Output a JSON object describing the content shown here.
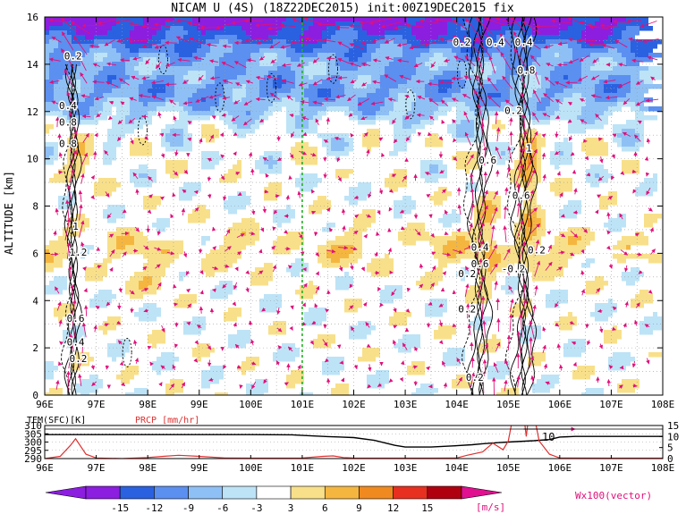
{
  "title": "NICAM U (4S) (18Z22DEC2015) init:00Z19DEC2015 fix",
  "colors": {
    "neg15": "#8c1ee0",
    "neg12": "#2a61e0",
    "neg9": "#5b8ff0",
    "neg6": "#8fc0f5",
    "neg3": "#bde3f7",
    "zero": "#ffffff",
    "pos3": "#f8e08a",
    "pos6": "#f5b640",
    "pos9": "#f08a20",
    "pos12": "#e83020",
    "pos15": "#b00010",
    "pos_hi": "#e01090",
    "vector": "#e0107a",
    "contour": "#000000",
    "temp_line": "#000000",
    "prcp_line": "#e03030",
    "marker_line": "#20b020"
  },
  "chart_data": [
    {
      "type": "heatmap",
      "name": "zonal-wind-section",
      "title": "NICAM U (4S) (18Z22DEC2015) init:00Z19DEC2015 fix",
      "ylabel": "ALTITUDE [km]",
      "xlim": [
        96,
        108
      ],
      "ylim": [
        0,
        16
      ],
      "x_ticks": [
        "96E",
        "97E",
        "98E",
        "99E",
        "100E",
        "101E",
        "102E",
        "103E",
        "104E",
        "105E",
        "106E",
        "107E",
        "108E"
      ],
      "y_ticks": [
        "0",
        "2",
        "4",
        "6",
        "8",
        "10",
        "12",
        "14",
        "16"
      ],
      "grid": true,
      "marker_x": 101,
      "contour_labels": [
        {
          "x": 96.55,
          "y": 14.2,
          "text": "0.2"
        },
        {
          "x": 96.45,
          "y": 12.1,
          "text": "0.4"
        },
        {
          "x": 96.45,
          "y": 11.4,
          "text": "0.8"
        },
        {
          "x": 96.45,
          "y": 10.5,
          "text": "0.8"
        },
        {
          "x": 96.6,
          "y": 7.0,
          "text": "1"
        },
        {
          "x": 96.65,
          "y": 5.9,
          "text": "1.2"
        },
        {
          "x": 96.6,
          "y": 3.1,
          "text": "0.6"
        },
        {
          "x": 96.6,
          "y": 2.1,
          "text": "0.4"
        },
        {
          "x": 96.65,
          "y": 1.4,
          "text": "0.2"
        },
        {
          "x": 104.1,
          "y": 18.2,
          "text": "0.2"
        },
        {
          "x": 104.75,
          "y": 18.3,
          "text": "0.4"
        },
        {
          "x": 105.3,
          "y": 18.4,
          "text": "0.4"
        },
        {
          "x": 105.35,
          "y": 13.6,
          "text": "0.8"
        },
        {
          "x": 105.1,
          "y": 11.9,
          "text": "0.2"
        },
        {
          "x": 104.6,
          "y": 9.8,
          "text": "0.6"
        },
        {
          "x": 105.4,
          "y": 10.3,
          "text": "1"
        },
        {
          "x": 105.25,
          "y": 8.3,
          "text": "0.6"
        },
        {
          "x": 104.45,
          "y": 6.1,
          "text": "0.4"
        },
        {
          "x": 104.45,
          "y": 5.4,
          "text": "0.6"
        },
        {
          "x": 104.2,
          "y": 5.0,
          "text": "0.2"
        },
        {
          "x": 105.1,
          "y": 5.2,
          "text": "-0.2"
        },
        {
          "x": 105.55,
          "y": 6.0,
          "text": "0.2"
        },
        {
          "x": 104.2,
          "y": 3.5,
          "text": "0.2"
        },
        {
          "x": 104.35,
          "y": 0.6,
          "text": "0.2"
        }
      ]
    },
    {
      "type": "line",
      "name": "surface-timeseries",
      "xlim": [
        96,
        108
      ],
      "x_ticks": [
        "96E",
        "97E",
        "98E",
        "99E",
        "100E",
        "101E",
        "102E",
        "103E",
        "104E",
        "105E",
        "106E",
        "107E",
        "108E"
      ],
      "series": [
        {
          "name": "TEM(SFC)[K]",
          "axis": "left",
          "ylim": [
            290,
            310
          ],
          "ticks": [
            "290",
            "295",
            "300",
            "305",
            "310"
          ],
          "x": [
            96,
            97,
            98,
            99,
            100,
            100.8,
            101,
            101.5,
            102,
            102.4,
            102.8,
            103,
            103.5,
            104,
            104.3,
            104.5,
            104.8,
            105,
            105.5,
            105.8,
            106,
            106.3,
            107,
            107.5,
            108
          ],
          "values": [
            304.5,
            304.5,
            304.5,
            304.5,
            304.5,
            304.4,
            304,
            303.3,
            302.7,
            301,
            298,
            297,
            297,
            297.8,
            298.4,
            299,
            299.6,
            300,
            300.8,
            301.5,
            303,
            303.4,
            303.4,
            303.4,
            303.4
          ]
        },
        {
          "name": "PRCP [mm/hr]",
          "axis": "right",
          "ylim": [
            0,
            15
          ],
          "ticks": [
            "0",
            "5",
            "10",
            "15"
          ],
          "x": [
            96,
            96.3,
            96.5,
            96.6,
            96.8,
            97,
            97.5,
            98,
            98.3,
            98.6,
            99,
            99.5,
            100,
            101,
            101.4,
            101.6,
            101.8,
            102,
            103,
            103.5,
            104,
            104.2,
            104.5,
            104.7,
            104.9,
            105,
            105.1,
            105.2,
            105.3,
            105.35,
            105.4,
            105.5,
            105.6,
            105.8,
            106,
            107,
            108
          ],
          "values": [
            0,
            1,
            6,
            9,
            2,
            0.3,
            0,
            0.5,
            1,
            1.5,
            1,
            0.3,
            0.2,
            0.3,
            1,
            1.2,
            0.5,
            0.3,
            0.2,
            0.2,
            0.3,
            1.5,
            3,
            7,
            4,
            8,
            20,
            18,
            20,
            10,
            20,
            20,
            8,
            2,
            0.3,
            0.2,
            0.2
          ]
        }
      ],
      "annotation": "10"
    }
  ],
  "colorbar": {
    "labels": [
      "-15",
      "-12",
      "-9",
      "-6",
      "-3",
      "3",
      "6",
      "9",
      "12",
      "15"
    ],
    "unit": "[m/s]",
    "vector_label": "Wx100(vector)"
  }
}
